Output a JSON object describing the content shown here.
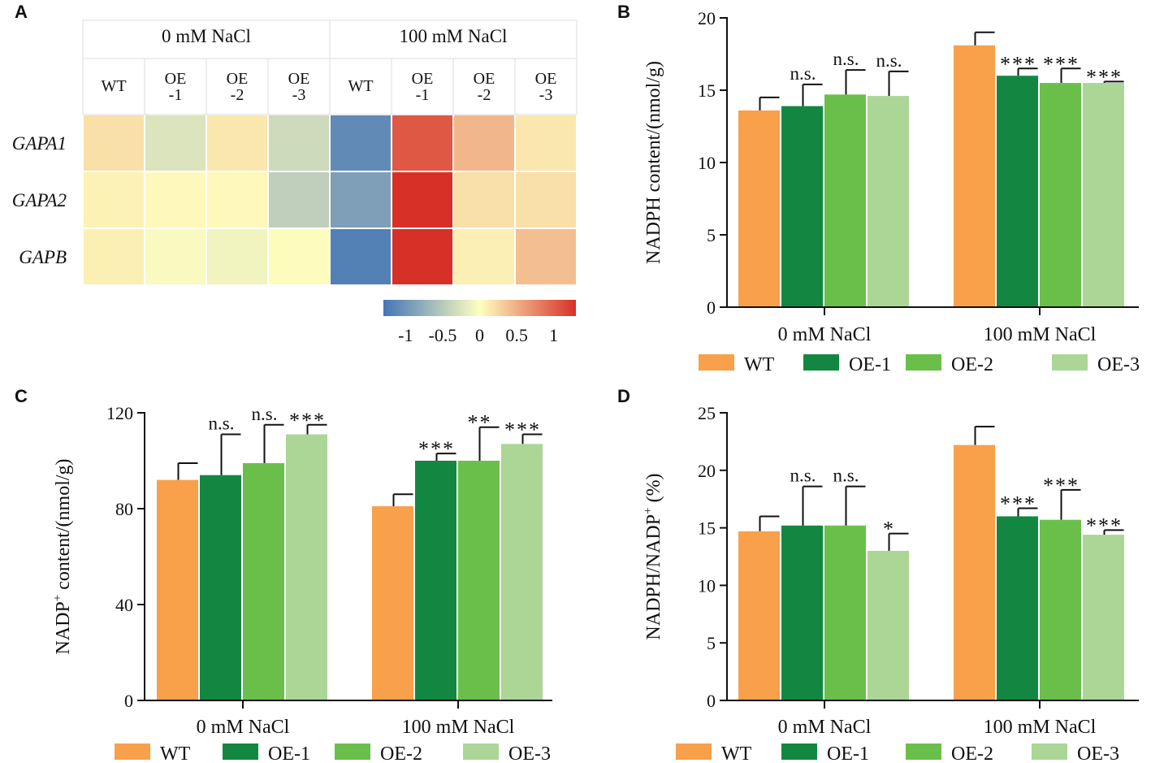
{
  "colors": {
    "WT": "#f8a04a",
    "OE-1": "#138742",
    "OE-2": "#6abf4b",
    "OE-3": "#abd696",
    "heat_low": "#4575b4",
    "heat_mid": "#ffffbf",
    "heat_high": "#d73027"
  },
  "chart_data": [
    {
      "panel": "A",
      "type": "heatmap",
      "group_labels": [
        "0 mM NaCl",
        "100 mM NaCl"
      ],
      "columns": [
        {
          "line1": "WT",
          "line2": ""
        },
        {
          "line1": "OE",
          "line2": "-1"
        },
        {
          "line1": "OE",
          "line2": "-2"
        },
        {
          "line1": "OE",
          "line2": "-3"
        },
        {
          "line1": "WT",
          "line2": ""
        },
        {
          "line1": "OE",
          "line2": "-1"
        },
        {
          "line1": "OE",
          "line2": "-2"
        },
        {
          "line1": "OE",
          "line2": "-3"
        }
      ],
      "rows": [
        "GAPA1",
        "GAPA2",
        "GAPB"
      ],
      "values": [
        [
          0.2,
          -0.25,
          0.15,
          -0.35,
          -1.1,
          1.05,
          0.45,
          0.15
        ],
        [
          0.08,
          0.04,
          0.04,
          -0.45,
          -0.9,
          1.3,
          0.2,
          0.2
        ],
        [
          0.1,
          -0.05,
          -0.1,
          0.02,
          -1.2,
          1.3,
          0.1,
          0.4
        ]
      ],
      "colorbar": {
        "range": [
          -1.3,
          1.3
        ],
        "tick_values": [
          -1,
          -0.5,
          0,
          0.5,
          1
        ],
        "tick_labels": [
          "-1",
          "-0.5",
          "0",
          "0.5",
          "1"
        ]
      }
    },
    {
      "panel": "B",
      "type": "bar",
      "ylabel_main": "NADPH content/(nmol/g)",
      "ylabel_sup": "",
      "ylabel_tail": "",
      "ylim": [
        0,
        20
      ],
      "yticks": [
        0,
        5,
        10,
        15,
        20
      ],
      "categories": [
        "0 mM NaCl",
        "100 mM NaCl"
      ],
      "series": [
        {
          "name": "WT",
          "values": [
            13.6,
            18.1
          ],
          "errors": [
            0.9,
            0.9
          ],
          "sig": [
            "",
            ""
          ]
        },
        {
          "name": "OE-1",
          "values": [
            13.9,
            16.0
          ],
          "errors": [
            1.5,
            0.5
          ],
          "sig": [
            "n.s.",
            "***"
          ]
        },
        {
          "name": "OE-2",
          "values": [
            14.7,
            15.5
          ],
          "errors": [
            1.7,
            1.0
          ],
          "sig": [
            "n.s.",
            "***"
          ]
        },
        {
          "name": "OE-3",
          "values": [
            14.6,
            15.5
          ],
          "errors": [
            1.7,
            0.1
          ],
          "sig": [
            "n.s.",
            "***"
          ]
        }
      ],
      "legend": [
        "WT",
        "OE-1",
        "OE-2",
        "OE-3"
      ]
    },
    {
      "panel": "C",
      "type": "bar",
      "ylabel_main": "NADP",
      "ylabel_sup": "+",
      "ylabel_tail": " content/(nmol/g)",
      "ylim": [
        0,
        120
      ],
      "yticks": [
        0,
        40,
        80,
        120
      ],
      "categories": [
        "0 mM NaCl",
        "100 mM NaCl"
      ],
      "series": [
        {
          "name": "WT",
          "values": [
            92,
            81
          ],
          "errors": [
            7,
            5
          ],
          "sig": [
            "",
            ""
          ]
        },
        {
          "name": "OE-1",
          "values": [
            94,
            100
          ],
          "errors": [
            17,
            3
          ],
          "sig": [
            "n.s.",
            "***"
          ]
        },
        {
          "name": "OE-2",
          "values": [
            99,
            100
          ],
          "errors": [
            16,
            14
          ],
          "sig": [
            "n.s.",
            "**"
          ]
        },
        {
          "name": "OE-3",
          "values": [
            111,
            107
          ],
          "errors": [
            4,
            4
          ],
          "sig": [
            "***",
            "***"
          ]
        }
      ],
      "legend": [
        "WT",
        "OE-1",
        "OE-2",
        "OE-3"
      ]
    },
    {
      "panel": "D",
      "type": "bar",
      "ylabel_main": "NADPH/NADP",
      "ylabel_sup": "+",
      "ylabel_tail": " (%)",
      "ylim": [
        0,
        25
      ],
      "yticks": [
        0,
        5,
        10,
        15,
        20,
        25
      ],
      "categories": [
        "0 mM NaCl",
        "100 mM NaCl"
      ],
      "series": [
        {
          "name": "WT",
          "values": [
            14.7,
            22.2
          ],
          "errors": [
            1.3,
            1.6
          ],
          "sig": [
            "",
            ""
          ]
        },
        {
          "name": "OE-1",
          "values": [
            15.2,
            16.0
          ],
          "errors": [
            3.4,
            0.7
          ],
          "sig": [
            "n.s.",
            "***"
          ]
        },
        {
          "name": "OE-2",
          "values": [
            15.2,
            15.7
          ],
          "errors": [
            3.4,
            2.6
          ],
          "sig": [
            "n.s.",
            "***"
          ]
        },
        {
          "name": "OE-3",
          "values": [
            13.0,
            14.4
          ],
          "errors": [
            1.5,
            0.4
          ],
          "sig": [
            "*",
            "***"
          ]
        }
      ],
      "legend": [
        "WT",
        "OE-1",
        "OE-2",
        "OE-3"
      ]
    }
  ]
}
